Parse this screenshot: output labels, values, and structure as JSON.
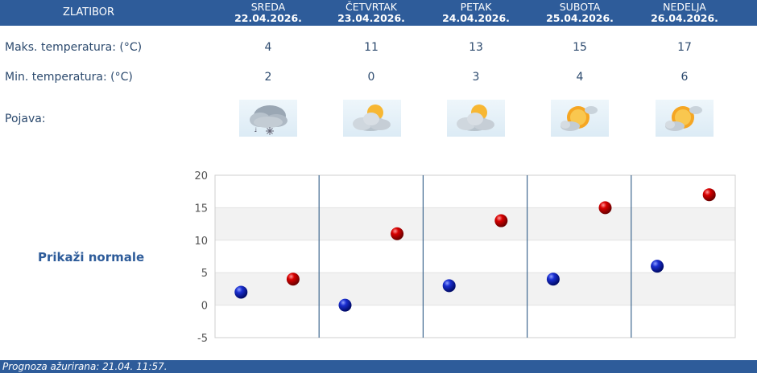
{
  "header": {
    "location": "ZLATIBOR",
    "days": [
      {
        "name": "SREDA",
        "date": "22.04.2026."
      },
      {
        "name": "ČETVRTAK",
        "date": "23.04.2026."
      },
      {
        "name": "PETAK",
        "date": "24.04.2026."
      },
      {
        "name": "SUBOTA",
        "date": "25.04.2026."
      },
      {
        "name": "NEDELJA",
        "date": "26.04.2026."
      }
    ]
  },
  "rows": {
    "max_label": "Maks. temperatura: (°C)",
    "min_label": "Min. temperatura: (°C)",
    "weather_label": "Pojava:"
  },
  "forecast": {
    "max": [
      "4",
      "11",
      "13",
      "15",
      "17"
    ],
    "min": [
      "2",
      "0",
      "3",
      "4",
      "6"
    ],
    "icons": [
      "cloud-snow-icon",
      "partly-cloudy-icon",
      "partly-cloudy-icon",
      "mostly-sunny-icon",
      "mostly-sunny-icon"
    ]
  },
  "normals_link": "Prikaži normale",
  "footer": {
    "updated": "Prognoza ažurirana:  21.04. 11:57."
  },
  "colors": {
    "header_bg": "#2e5c9a",
    "max_point": "#cc0000",
    "min_point": "#0011aa"
  },
  "chart_data": {
    "type": "scatter",
    "ylim": [
      -5,
      20
    ],
    "yticks": [
      "20",
      "15",
      "10",
      "5",
      "0",
      "-5"
    ],
    "categories": [
      "22.04.2026.",
      "23.04.2026.",
      "24.04.2026.",
      "25.04.2026.",
      "26.04.2026."
    ],
    "series": [
      {
        "values": [
          2,
          0,
          3,
          4,
          6
        ],
        "color": "#0011aa"
      },
      {
        "values": [
          4,
          11,
          13,
          15,
          17
        ],
        "color": "#cc0000"
      }
    ],
    "grid": true
  }
}
